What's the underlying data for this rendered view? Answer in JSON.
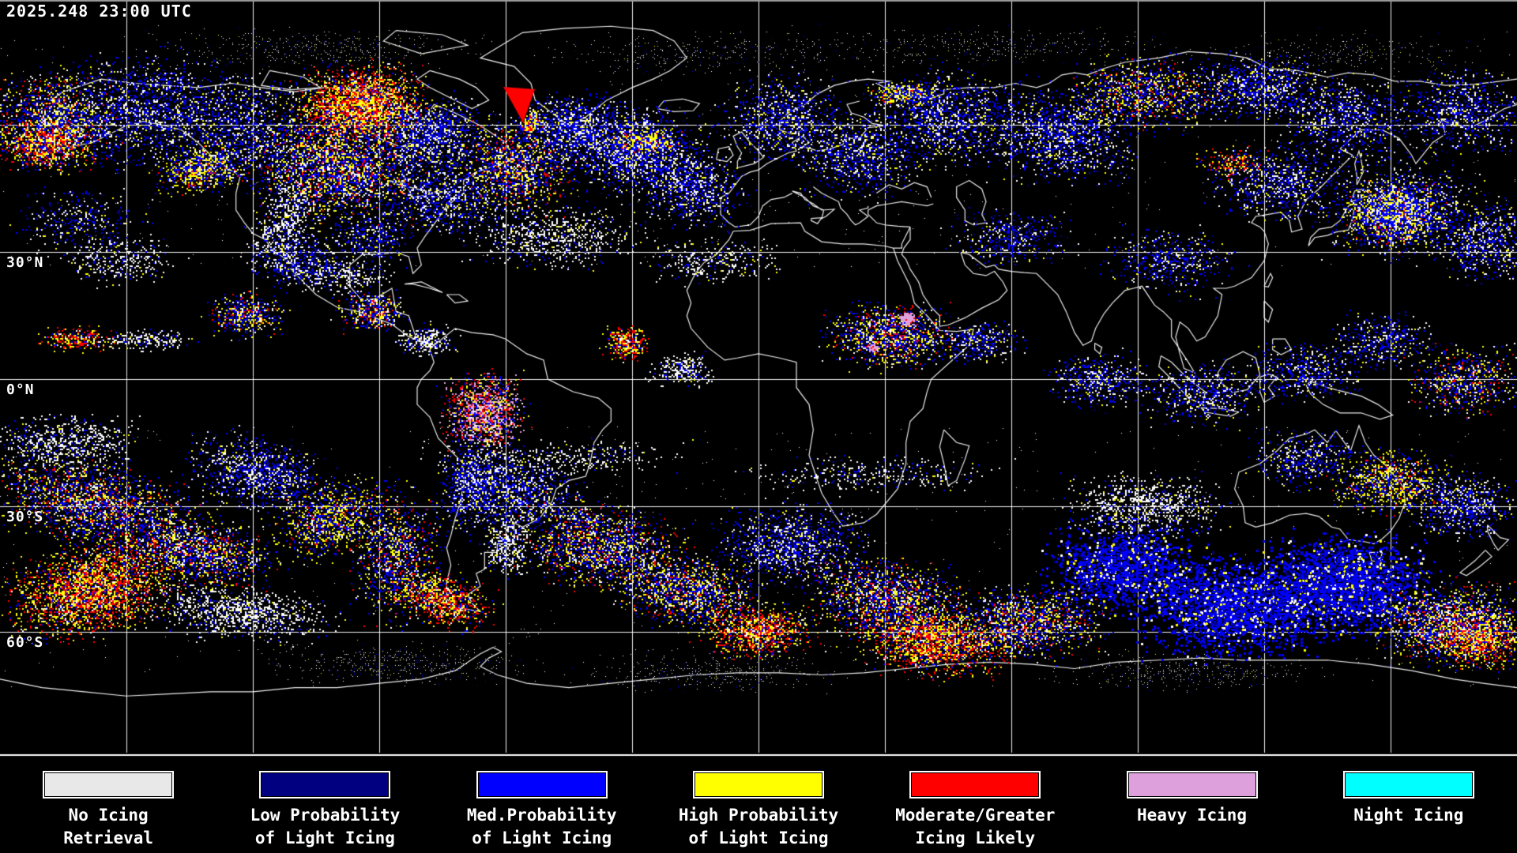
{
  "header": {
    "timestamp": "2025.248 23:00 UTC"
  },
  "map": {
    "projection": "equirectangular",
    "grid_interval_degrees": 30,
    "latitude_labels": [
      {
        "text": "30°N"
      },
      {
        "text": "0°N"
      },
      {
        "text": "30°S"
      },
      {
        "text": "60°S"
      }
    ],
    "colors": {
      "background": "#000000",
      "coastline": "#ffffff",
      "gridline": "#ffffff",
      "no_icing_white": "#ffffff",
      "low_prob_navy": "#000080",
      "med_prob_blue": "#0000ff",
      "high_prob_yellow": "#ffff00",
      "moderate_red": "#ff0000",
      "heavy_pink": "#dda0dd",
      "night_cyan": "#00ffff"
    }
  },
  "legend": {
    "items": [
      {
        "id": "no-icing",
        "label_line1": "No Icing",
        "label_line2": "Retrieval",
        "color": "#e8e8e8"
      },
      {
        "id": "low-probability",
        "label_line1": "Low Probability",
        "label_line2": "of Light Icing",
        "color": "#000080"
      },
      {
        "id": "med-probability",
        "label_line1": "Med.Probability",
        "label_line2": "of Light Icing",
        "color": "#0000ff"
      },
      {
        "id": "high-probability",
        "label_line1": "High Probability",
        "label_line2": "of Light Icing",
        "color": "#ffff00"
      },
      {
        "id": "moderate-greater",
        "label_line1": "Moderate/Greater",
        "label_line2": "Icing Likely",
        "color": "#ff0000"
      },
      {
        "id": "heavy-icing",
        "label_line1": "Heavy Icing",
        "label_line2": "",
        "color": "#dda0dd"
      },
      {
        "id": "night-icing",
        "label_line1": "Night Icing",
        "label_line2": "",
        "color": "#00ffff"
      }
    ]
  }
}
